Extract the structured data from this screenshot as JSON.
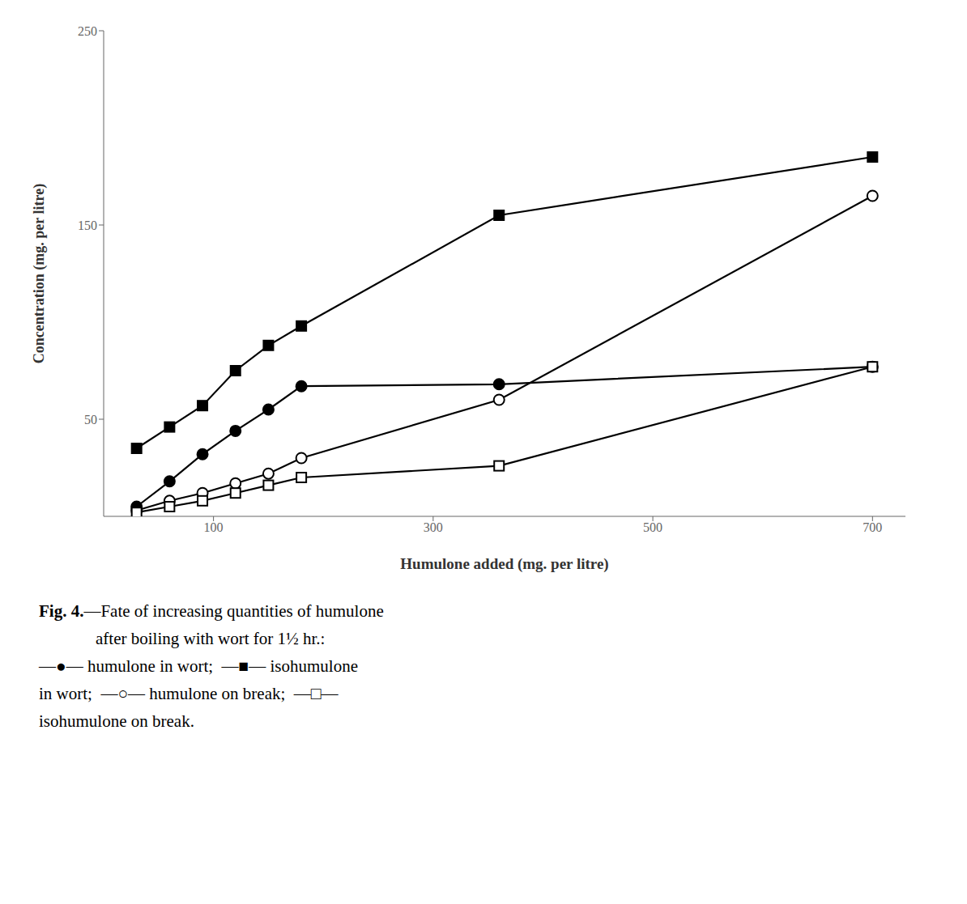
{
  "chart_data": {
    "type": "line",
    "xlabel": "Humulone added (mg. per litre)",
    "ylabel": "Concentration (mg. per litre)",
    "xlim": [
      0,
      730
    ],
    "ylim": [
      0,
      250
    ],
    "xticks": [
      100,
      300,
      500,
      700
    ],
    "yticks": [
      50,
      150,
      250
    ],
    "grid": false,
    "x": [
      30,
      60,
      90,
      120,
      150,
      180,
      360,
      700
    ],
    "series": [
      {
        "color": "#000000",
        "marker": "filled_square",
        "line_style": "solid",
        "values": [
          35,
          46,
          57,
          75,
          88,
          98,
          155,
          185
        ]
      },
      {
        "color": "#000000",
        "marker": "open_circle",
        "line_style": "solid",
        "values": [
          3,
          8,
          12,
          17,
          22,
          30,
          60,
          165
        ]
      },
      {
        "color": "#000000",
        "marker": "filled_circle",
        "line_style": "solid",
        "values": [
          5,
          18,
          32,
          44,
          55,
          67,
          68,
          77
        ]
      },
      {
        "color": "#000000",
        "marker": "open_square",
        "line_style": "solid",
        "values": [
          2,
          5,
          8,
          12,
          16,
          20,
          26,
          77
        ]
      }
    ],
    "annotations": [
      "Fig. 4.",
      "—Fate of increasing quantities of humulone",
      "after boiling with wort for 1½ hr.:",
      "—●— humulone in wort;  —■— isohumulone",
      "in wort;  —○— humulone on break;  —□—",
      "isohumulone on break."
    ]
  }
}
